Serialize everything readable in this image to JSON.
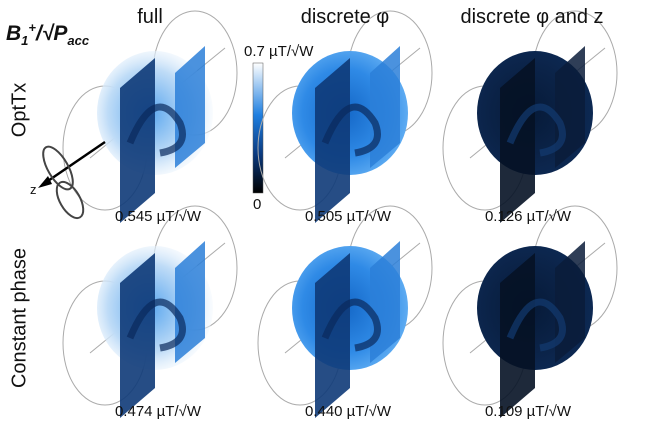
{
  "title": {
    "base": "B",
    "sub": "1",
    "sup": "+",
    "rest": "/√P",
    "rest_sub": "acc"
  },
  "columns": [
    "full",
    "discrete φ",
    "discrete φ and z"
  ],
  "rows": [
    "OptTx",
    "Constant phase"
  ],
  "colorbar": {
    "max": "0.7 µT/√W",
    "min": "0"
  },
  "axis_label": "z",
  "panels": [
    [
      "0.545 µT/√W",
      "0.505 µT/√W",
      "0.126 µT/√W"
    ],
    [
      "0.474 µT/√W",
      "0.440 µT/√W",
      "0.109 µT/√W"
    ]
  ]
}
